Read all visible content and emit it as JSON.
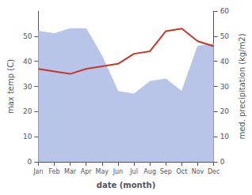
{
  "chart_data": {
    "type": "line",
    "categories": [
      "Jan",
      "Feb",
      "Mar",
      "Apr",
      "May",
      "Jun",
      "Jul",
      "Aug",
      "Sep",
      "Oct",
      "Nov",
      "Dec"
    ],
    "xlabel": "date (month)",
    "ylabel": "max temp (C)",
    "y2label": "med. precipitation (kg/m2)",
    "ylim": [
      0,
      60
    ],
    "yticks": [
      0,
      10,
      20,
      30,
      40,
      50
    ],
    "y2lim": [
      0,
      60
    ],
    "y2ticks": [
      0,
      10,
      20,
      30,
      40,
      50,
      60
    ],
    "grid": false,
    "series": [
      {
        "type": "area",
        "axis": "y2",
        "color": "#b8c4e8",
        "values": [
          52,
          51,
          53,
          53,
          42,
          28,
          27,
          32,
          33,
          28,
          46,
          47
        ]
      },
      {
        "type": "line",
        "color": "#c0392b",
        "values": [
          37,
          36,
          35,
          37,
          38,
          39,
          43,
          44,
          52,
          53,
          48,
          46
        ]
      }
    ]
  }
}
